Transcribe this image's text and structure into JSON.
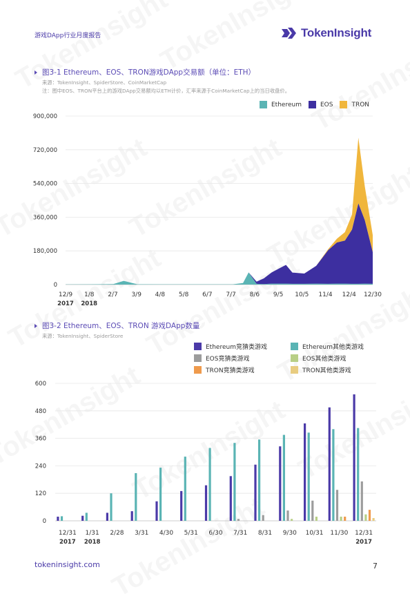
{
  "header": {
    "doc_title": "游戏DApp行业月度报告",
    "logo_text": "TokenInsight",
    "watermark": "TokenInsight"
  },
  "figure1": {
    "title": "图3-1 Ethereum、EOS、TRON游戏DApp交易额（单位：ETH）",
    "source": "来源：TokenInsight、SpiderStore、CoinMarketCap",
    "note": "注：图中EOS、TRON平台上的游戏DApp交易额均以ETH计价，汇率来源于CoinMarketCap上的当日收盘价。"
  },
  "figure2": {
    "title": "图3-2 Ethereum、EOS、TRON 游戏DApp数量",
    "source": "来源：TokenInsight、SpiderStore"
  },
  "chart_data": [
    {
      "type": "area",
      "stacked": true,
      "title": "图3-1 Ethereum、EOS、TRON游戏DApp交易额（单位：ETH）",
      "x_ticks": [
        "12/9",
        "1/8",
        "2/7",
        "3/9",
        "4/8",
        "5/8",
        "6/7",
        "7/7",
        "8/6",
        "9/5",
        "10/5",
        "11/4",
        "12/4",
        "12/30"
      ],
      "x_year_labels": [
        {
          "at": "12/9",
          "label": "2017"
        },
        {
          "at": "1/8",
          "label": "2018"
        }
      ],
      "y_ticks": [
        0,
        180000,
        360000,
        540000,
        720000,
        900000
      ],
      "y_tick_labels": [
        "0",
        "180,000",
        "360,000",
        "540,000",
        "720,000",
        "900,000"
      ],
      "ylim": [
        0,
        900000
      ],
      "grid": true,
      "legend_position": "top-right",
      "series": [
        {
          "name": "Ethereum",
          "color": "#5ab4b4"
        },
        {
          "name": "EOS",
          "color": "#3d2fa0"
        },
        {
          "name": "TRON",
          "color": "#f0b63c"
        }
      ],
      "approx_points": {
        "x": [
          "2017-12-09",
          "2018-01-08",
          "2018-02-07",
          "2018-02-20",
          "2018-03-09",
          "2018-04-08",
          "2018-05-08",
          "2018-06-07",
          "2018-07-07",
          "2018-07-20",
          "2018-07-27",
          "2018-08-06",
          "2018-08-15",
          "2018-08-25",
          "2018-09-05",
          "2018-09-12",
          "2018-09-20",
          "2018-10-05",
          "2018-10-20",
          "2018-11-04",
          "2018-11-15",
          "2018-11-25",
          "2018-12-04",
          "2018-12-12",
          "2018-12-20",
          "2018-12-30"
        ],
        "Ethereum": [
          1000,
          1500,
          3000,
          20000,
          2000,
          1500,
          1500,
          1500,
          1500,
          8000,
          65000,
          4000,
          3000,
          5000,
          5000,
          5000,
          4000,
          4000,
          5000,
          4000,
          5000,
          5000,
          4000,
          4000,
          5000,
          4000
        ],
        "EOS": [
          0,
          0,
          0,
          0,
          0,
          0,
          0,
          0,
          0,
          0,
          0,
          12000,
          30000,
          60000,
          85000,
          100000,
          60000,
          55000,
          95000,
          180000,
          220000,
          230000,
          290000,
          430000,
          340000,
          170000
        ],
        "TRON": [
          0,
          0,
          0,
          0,
          0,
          0,
          0,
          0,
          0,
          0,
          0,
          0,
          0,
          0,
          0,
          0,
          0,
          0,
          0,
          5000,
          20000,
          45000,
          80000,
          350000,
          180000,
          90000
        ]
      }
    },
    {
      "type": "bar",
      "title": "图3-2 Ethereum、EOS、TRON 游戏DApp数量",
      "categories": [
        "12/31",
        "1/31",
        "2/28",
        "3/31",
        "4/30",
        "5/31",
        "6/30",
        "7/31",
        "8/31",
        "9/30",
        "10/31",
        "11/30",
        "12/31"
      ],
      "x_year_labels": [
        {
          "at": "12/31",
          "label": "2017"
        },
        {
          "at": "1/31",
          "label": "2018"
        }
      ],
      "y_ticks": [
        0,
        120,
        240,
        360,
        480,
        600
      ],
      "ylim": [
        0,
        600
      ],
      "grid": true,
      "legend_position": "top-right",
      "series": [
        {
          "name": "Ethereum竞猜类游戏",
          "color": "#4b3aa8",
          "values": [
            18,
            22,
            35,
            42,
            85,
            130,
            155,
            195,
            245,
            325,
            425,
            495,
            552
          ]
        },
        {
          "name": "Ethereum其他类游戏",
          "color": "#5ab4b4",
          "values": [
            20,
            35,
            120,
            208,
            232,
            280,
            318,
            340,
            355,
            375,
            385,
            400,
            405
          ]
        },
        {
          "name": "EOS竞猜类游戏",
          "color": "#9c9c9c",
          "values": [
            0,
            0,
            0,
            0,
            0,
            0,
            0,
            8,
            25,
            45,
            88,
            135,
            172
          ]
        },
        {
          "name": "EOS其他类游戏",
          "color": "#b8cf86",
          "values": [
            0,
            0,
            0,
            0,
            0,
            0,
            0,
            0,
            0,
            8,
            18,
            18,
            28
          ]
        },
        {
          "name": "TRON竞猜类游戏",
          "color": "#ef9a4c",
          "values": [
            0,
            0,
            0,
            0,
            0,
            0,
            0,
            0,
            0,
            0,
            0,
            18,
            48
          ]
        },
        {
          "name": "TRON其他类游戏",
          "color": "#e8cc80",
          "values": [
            0,
            0,
            0,
            0,
            0,
            0,
            0,
            0,
            0,
            0,
            0,
            0,
            12
          ]
        }
      ]
    }
  ],
  "footer": {
    "link": "tokeninsight.com",
    "page_number": "7"
  }
}
